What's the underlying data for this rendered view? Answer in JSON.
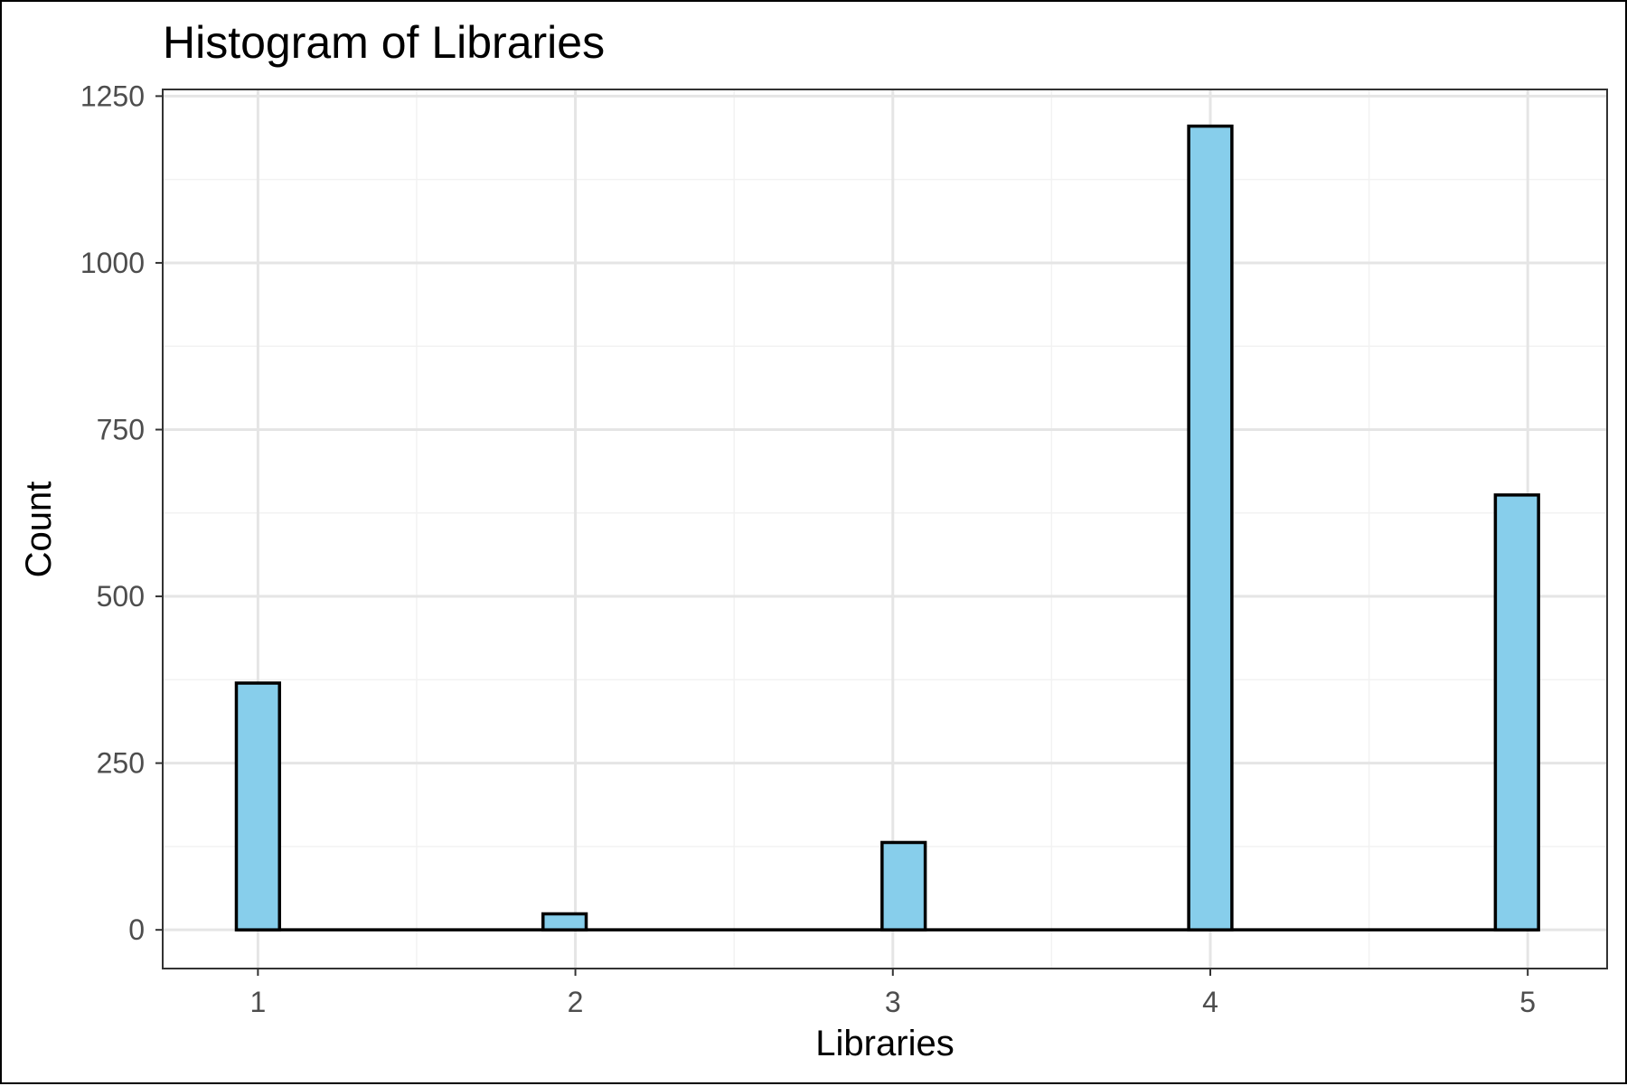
{
  "chart_data": {
    "type": "bar",
    "title": "Histogram of Libraries",
    "xlabel": "Libraries",
    "ylabel": "Count",
    "x_ticks": [
      "1",
      "2",
      "3",
      "4",
      "5"
    ],
    "y_ticks": [
      "0",
      "250",
      "500",
      "750",
      "1000",
      "1250"
    ],
    "xlim": [
      0.7,
      5.25
    ],
    "ylim": [
      -58,
      1260
    ],
    "bin_width": 0.136,
    "bins": [
      {
        "x": 1.0,
        "count": 370
      },
      {
        "x": 1.966,
        "count": 24
      },
      {
        "x": 3.034,
        "count": 131
      },
      {
        "x": 4.0,
        "count": 1205
      },
      {
        "x": 4.966,
        "count": 652
      }
    ],
    "grid": true,
    "colors": {
      "fill": "#87ceeb",
      "stroke": "#000000",
      "grid_major": "#e5e5e5",
      "grid_minor": "#f2f2f2"
    }
  }
}
